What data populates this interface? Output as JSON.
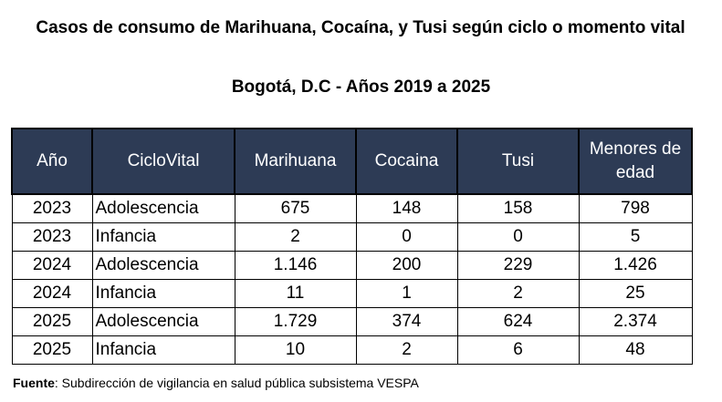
{
  "header": {
    "title": "Casos de consumo de Marihuana, Cocaína, y Tusi según ciclo o momento vital",
    "subtitle": "Bogotá, D.C - Años 2019 a 2025"
  },
  "table": {
    "headers": [
      "Año",
      "CicloVital",
      "Marihuana",
      "Cocaina",
      "Tusi",
      "Menores de edad"
    ],
    "rows": [
      [
        "2023",
        "Adolescencia",
        "675",
        "148",
        "158",
        "798"
      ],
      [
        "2023",
        "Infancia",
        "2",
        "0",
        "0",
        "5"
      ],
      [
        "2024",
        "Adolescencia",
        "1.146",
        "200",
        "229",
        "1.426"
      ],
      [
        "2024",
        "Infancia",
        "11",
        "1",
        "2",
        "25"
      ],
      [
        "2025",
        "Adolescencia",
        "1.729",
        "374",
        "624",
        "2.374"
      ],
      [
        "2025",
        "Infancia",
        "10",
        "2",
        "6",
        "48"
      ]
    ]
  },
  "footer": {
    "label": "Fuente",
    "text": ": Subdirección de vigilancia en salud pública subsistema VESPA"
  }
}
